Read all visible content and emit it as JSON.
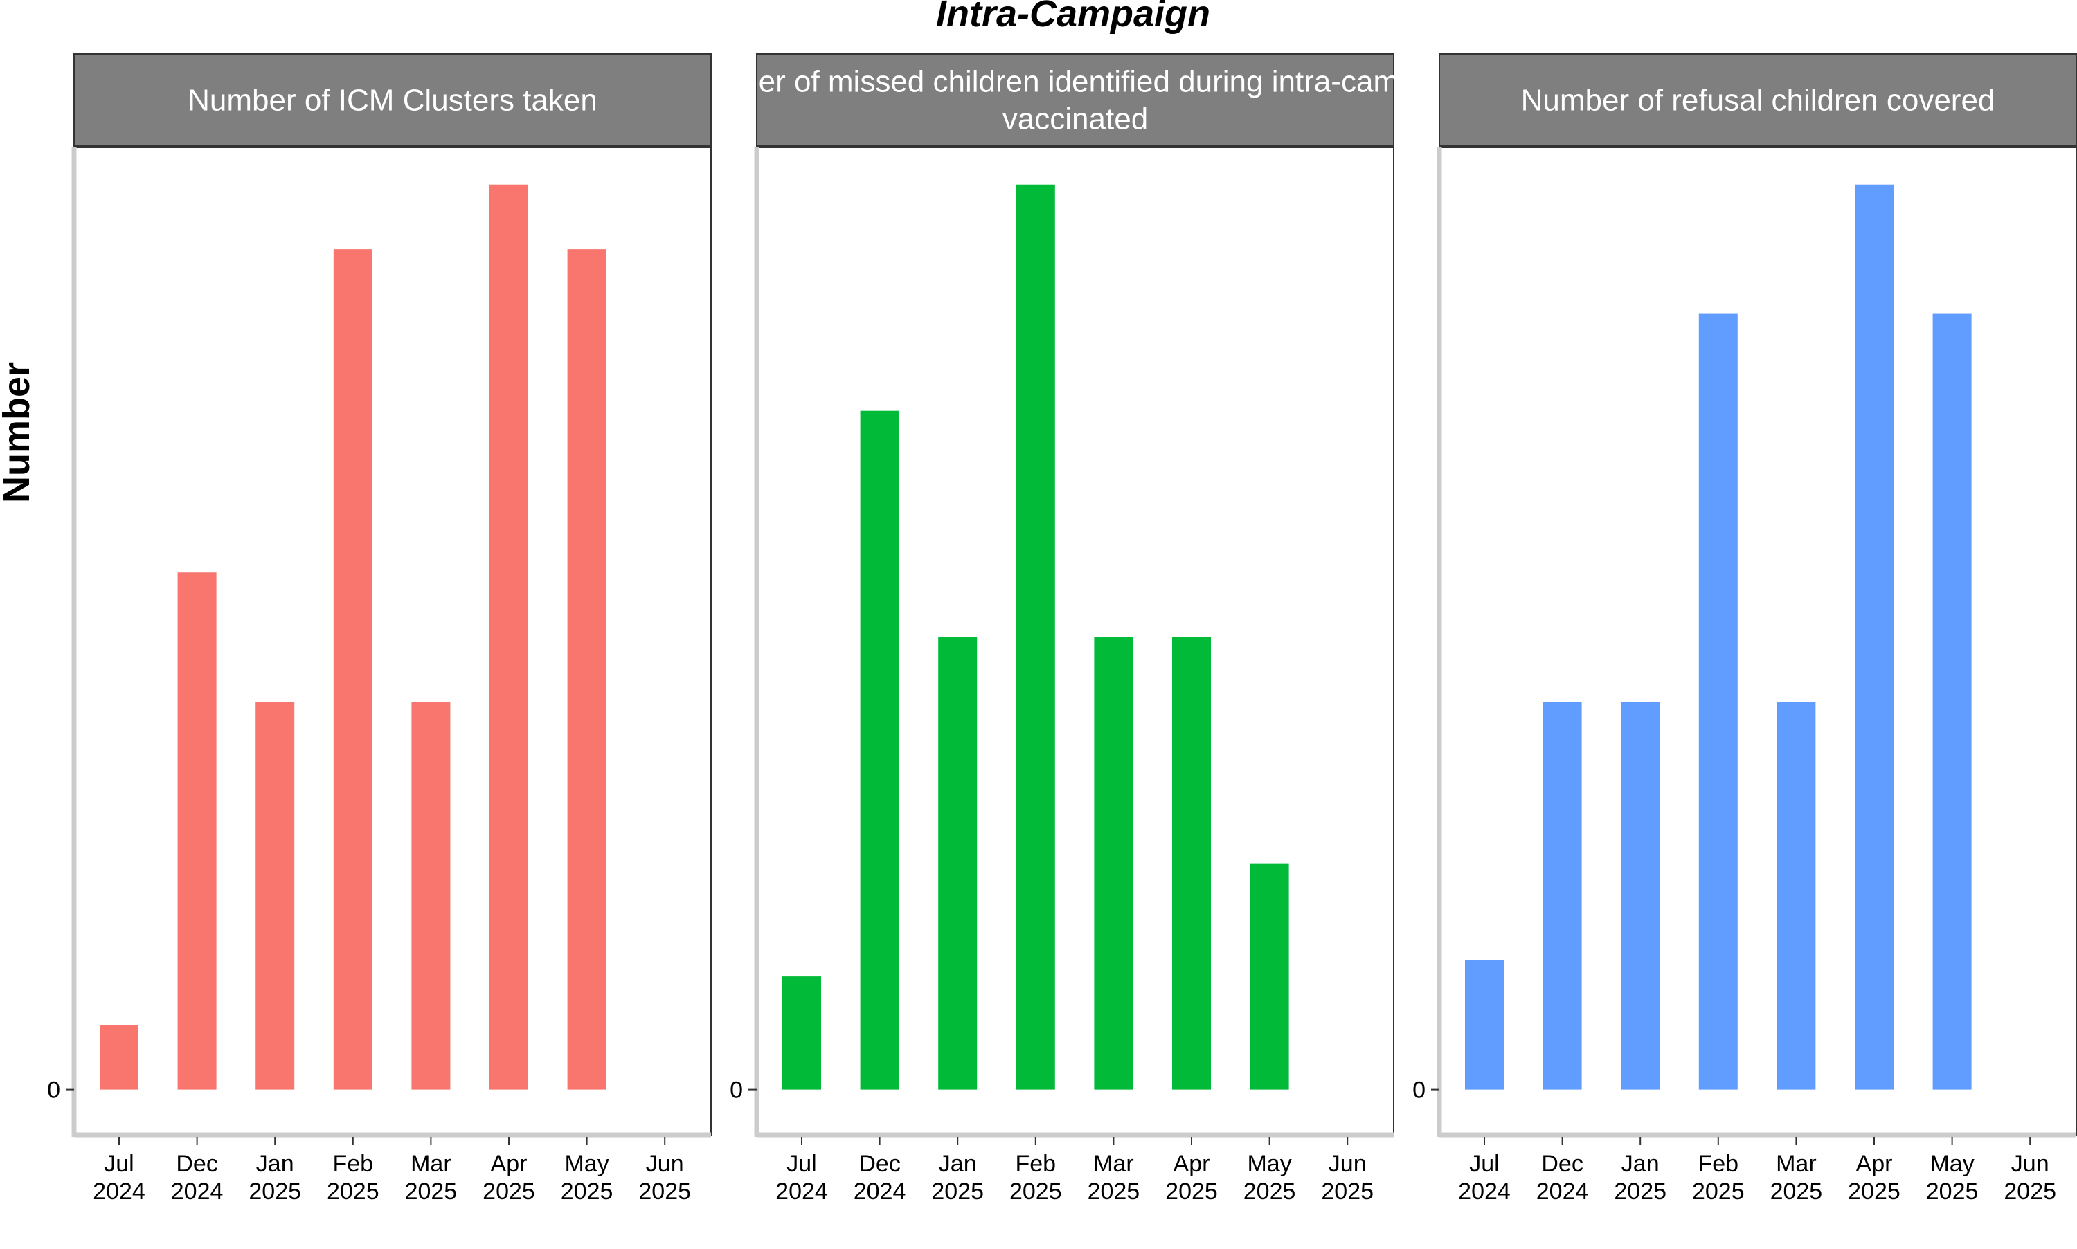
{
  "chart_data": {
    "type": "bar",
    "title": "Intra-Campaign",
    "ylabel": "Number",
    "xlabel": "",
    "categories": [
      [
        "Jul",
        "2024"
      ],
      [
        "Dec",
        "2024"
      ],
      [
        "Jan",
        "2025"
      ],
      [
        "Feb",
        "2025"
      ],
      [
        "Mar",
        "2025"
      ],
      [
        "Apr",
        "2025"
      ],
      [
        "May",
        "2025"
      ],
      [
        "Jun",
        "2025"
      ]
    ],
    "y_tick_labels": [
      "0"
    ],
    "panels": [
      {
        "strip": [
          "Number of ICM Clusters taken"
        ],
        "color": "#F8766D",
        "ylim": [
          -2.8,
          58.3
        ],
        "values": [
          4,
          32,
          24,
          52,
          24,
          56,
          52,
          null
        ]
      },
      {
        "strip": [
          "Number of missed children identified during intra-campaign",
          "vaccinated"
        ],
        "color": "#00BA38",
        "ylim": [
          -2.8,
          58.3
        ],
        "values": [
          7,
          42,
          28,
          56,
          28,
          28,
          14,
          null
        ]
      },
      {
        "strip": [
          "Number of refusal children covered"
        ],
        "color": "#619CFF",
        "ylim": [
          -2.8,
          58.3
        ],
        "values": [
          8,
          24,
          24,
          48,
          24,
          56,
          48,
          null
        ]
      }
    ],
    "grid": false,
    "legend": "none"
  }
}
